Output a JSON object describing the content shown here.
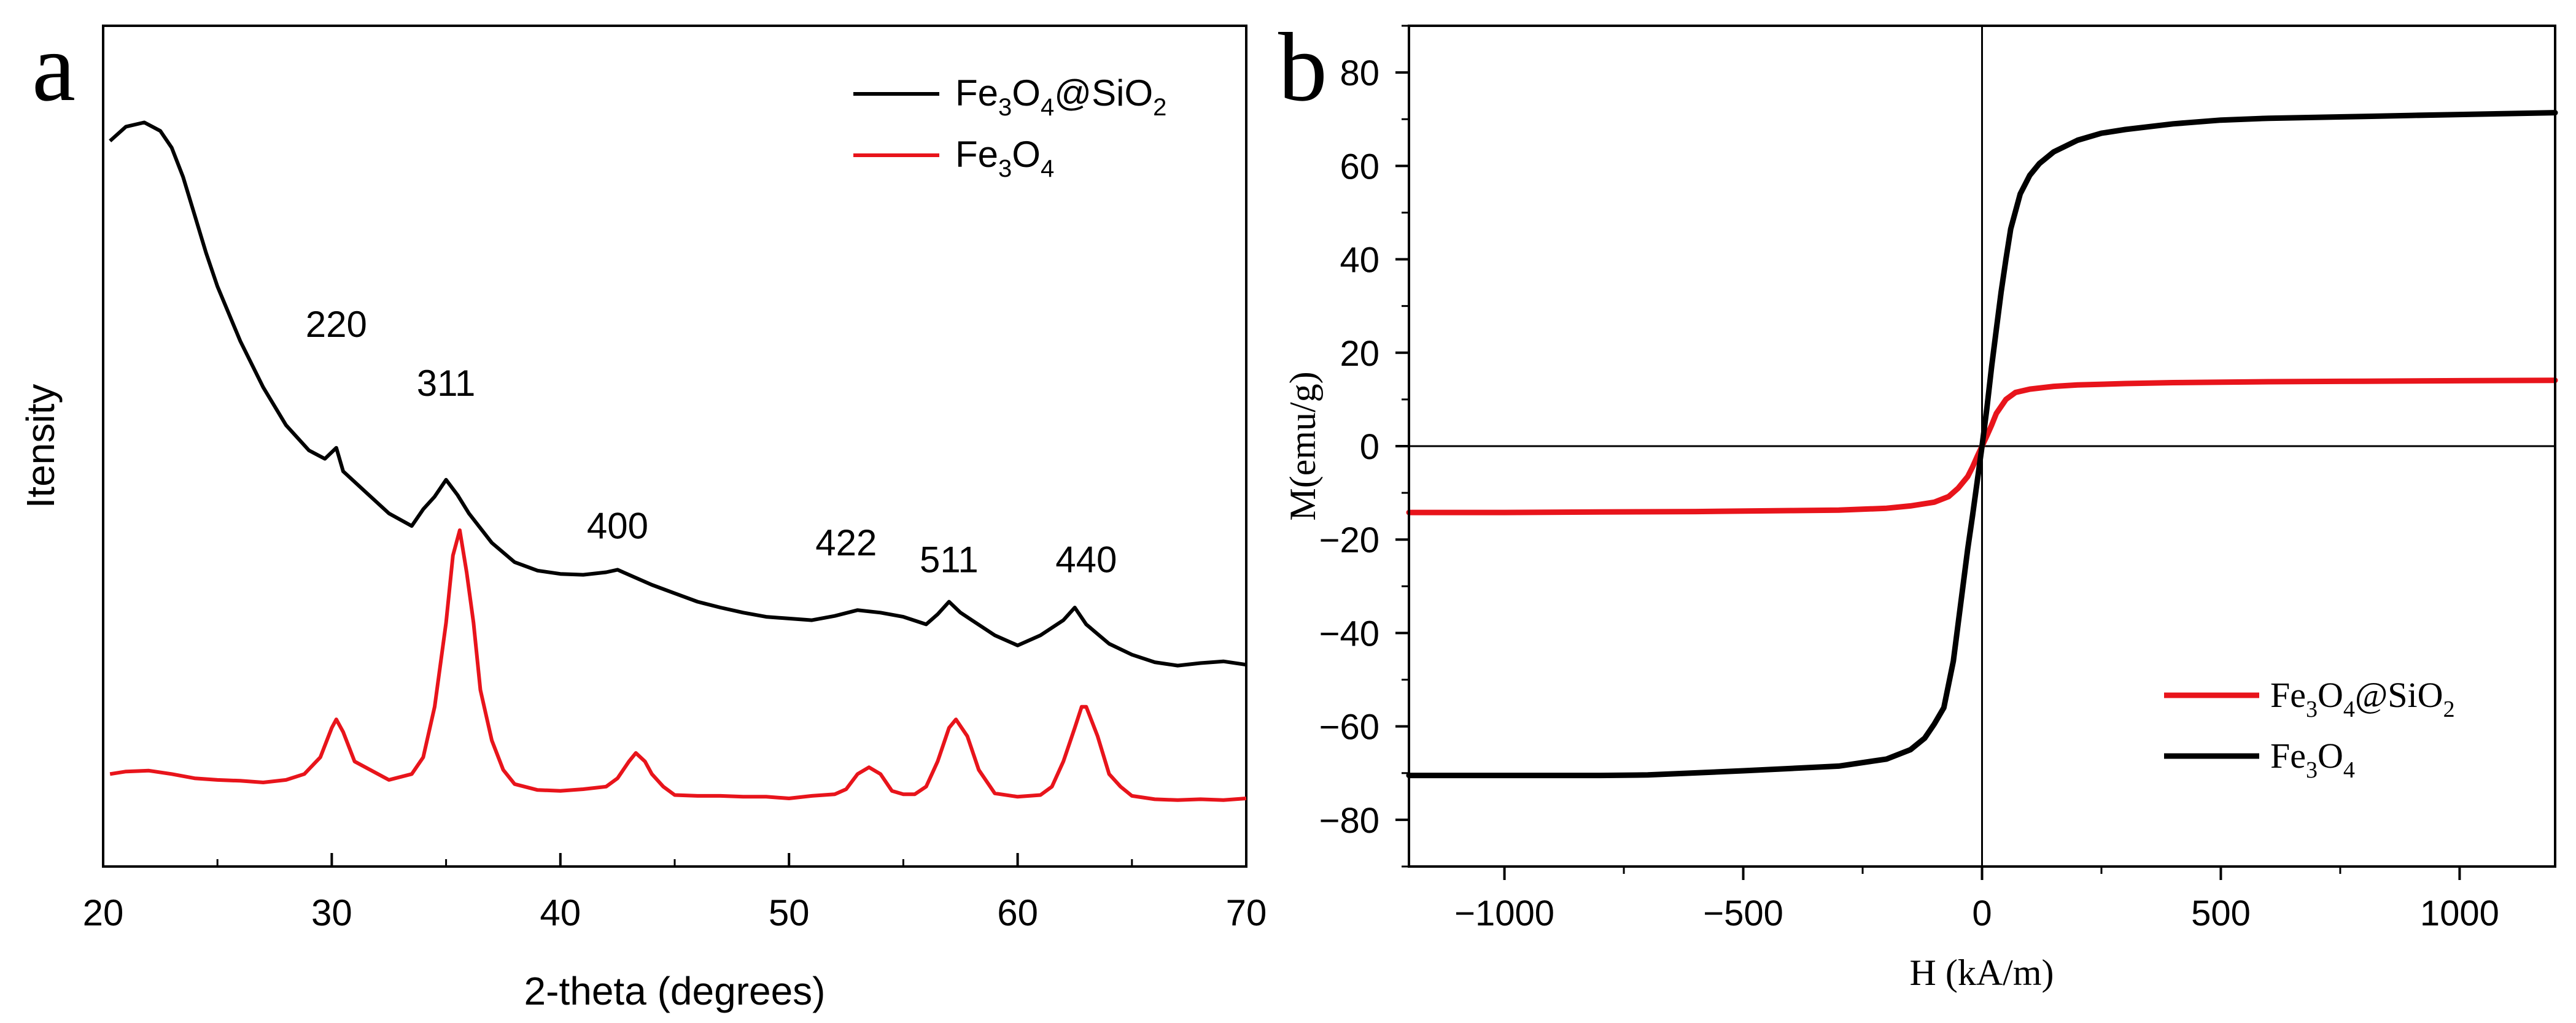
{
  "chart_data": [
    {
      "panel_label": "a",
      "type": "line",
      "title": "",
      "xlabel": "2-theta (degrees)",
      "ylabel": "Itensity",
      "xlim": [
        20,
        70
      ],
      "ylim": [
        0,
        100
      ],
      "xticks": [
        20,
        30,
        40,
        50,
        60,
        70
      ],
      "xtick_labels": [
        "20",
        "30",
        "40",
        "50",
        "60",
        "70"
      ],
      "yticks_shown": false,
      "grid": false,
      "legend_position": "top-right",
      "legend": [
        {
          "label": "Fe3O4@SiO2",
          "sub_label": {
            "pre1": "Fe",
            "sub1": "3",
            "mid": "O",
            "sub2": "4",
            "post": "@SiO",
            "sub3": "2"
          },
          "color": "#000000"
        },
        {
          "label": "Fe3O4",
          "sub_label": {
            "pre1": "Fe",
            "sub1": "3",
            "mid": "O",
            "sub2": "4",
            "post": "",
            "sub3": ""
          },
          "color": "#e8141b"
        }
      ],
      "annotations": [
        {
          "text": "220",
          "x": 30.2,
          "y": 63
        },
        {
          "text": "311",
          "x": 35.0,
          "y": 56
        },
        {
          "text": "400",
          "x": 42.5,
          "y": 39
        },
        {
          "text": "422",
          "x": 52.5,
          "y": 37
        },
        {
          "text": "511",
          "x": 57.0,
          "y": 35
        },
        {
          "text": "440",
          "x": 63.0,
          "y": 35
        }
      ],
      "series": [
        {
          "name": "Fe3O4@SiO2",
          "color": "#000000",
          "x": [
            20.3,
            21.0,
            21.8,
            22.5,
            23.0,
            23.5,
            24.0,
            24.5,
            25.0,
            26.0,
            27.0,
            28.0,
            29.0,
            29.7,
            30.2,
            30.5,
            31.5,
            32.5,
            33.5,
            34.0,
            34.5,
            35.0,
            35.5,
            36.0,
            37.0,
            38.0,
            39.0,
            40.0,
            41.0,
            42.0,
            42.5,
            43.0,
            44.0,
            45.0,
            46.0,
            47.0,
            48.0,
            49.0,
            50.0,
            51.0,
            52.0,
            53.0,
            54.0,
            55.0,
            56.0,
            56.5,
            57.0,
            57.5,
            58.0,
            59.0,
            60.0,
            61.0,
            62.0,
            62.5,
            63.0,
            64.0,
            65.0,
            66.0,
            67.0,
            68.0,
            69.0,
            70.0
          ],
          "y": [
            86.3,
            88.0,
            88.5,
            87.5,
            85.5,
            82.0,
            77.5,
            73.0,
            69.0,
            62.5,
            57.0,
            52.5,
            49.5,
            48.5,
            49.8,
            47.0,
            44.5,
            42.0,
            40.5,
            42.5,
            44.0,
            46.0,
            44.2,
            42.0,
            38.5,
            36.2,
            35.2,
            34.8,
            34.7,
            35.0,
            35.3,
            34.7,
            33.5,
            32.5,
            31.5,
            30.8,
            30.2,
            29.7,
            29.5,
            29.3,
            29.8,
            30.5,
            30.2,
            29.7,
            28.8,
            30.0,
            31.5,
            30.2,
            29.3,
            27.5,
            26.3,
            27.5,
            29.3,
            30.8,
            28.8,
            26.5,
            25.2,
            24.3,
            23.9,
            24.2,
            24.4,
            24.0
          ]
        },
        {
          "name": "Fe3O4",
          "color": "#e8141b",
          "x": [
            20.3,
            21.0,
            22.0,
            23.0,
            24.0,
            25.0,
            26.0,
            27.0,
            28.0,
            28.8,
            29.5,
            30.0,
            30.2,
            30.5,
            31.0,
            32.5,
            33.5,
            34.0,
            34.5,
            35.0,
            35.3,
            35.6,
            35.9,
            36.2,
            36.5,
            37.0,
            37.5,
            38.0,
            39.0,
            40.0,
            41.0,
            42.0,
            42.5,
            43.0,
            43.3,
            43.7,
            44.0,
            44.5,
            45.0,
            46.0,
            47.0,
            48.0,
            49.0,
            50.0,
            51.0,
            52.0,
            52.5,
            53.0,
            53.5,
            54.0,
            54.5,
            55.0,
            55.5,
            56.0,
            56.5,
            57.0,
            57.3,
            57.8,
            58.3,
            59.0,
            60.0,
            61.0,
            61.5,
            62.0,
            62.5,
            62.8,
            63.0,
            63.5,
            64.0,
            64.5,
            65.0,
            66.0,
            67.0,
            68.0,
            69.0,
            70.0
          ],
          "y": [
            11.0,
            11.3,
            11.4,
            11.0,
            10.5,
            10.3,
            10.2,
            10.0,
            10.3,
            11.0,
            13.0,
            16.5,
            17.5,
            16.0,
            12.5,
            10.3,
            11.0,
            13.0,
            19.0,
            29.0,
            37.0,
            40.0,
            35.0,
            29.0,
            21.0,
            15.0,
            11.5,
            9.8,
            9.1,
            9.0,
            9.2,
            9.5,
            10.5,
            12.5,
            13.5,
            12.5,
            11.0,
            9.5,
            8.5,
            8.4,
            8.4,
            8.3,
            8.3,
            8.1,
            8.4,
            8.6,
            9.2,
            11.0,
            11.8,
            11.0,
            9.0,
            8.6,
            8.6,
            9.5,
            12.5,
            16.5,
            17.5,
            15.5,
            11.5,
            8.7,
            8.3,
            8.5,
            9.5,
            12.5,
            16.5,
            19.0,
            19.0,
            15.5,
            11.0,
            9.5,
            8.4,
            8.0,
            7.9,
            8.0,
            7.9,
            8.1
          ]
        }
      ]
    },
    {
      "panel_label": "b",
      "type": "line",
      "title": "",
      "xlabel": "H (kA/m)",
      "ylabel": "M(emu/g)",
      "xlim": [
        -1200,
        1200
      ],
      "ylim": [
        -90,
        90
      ],
      "xticks": [
        -1000,
        -500,
        0,
        500,
        1000
      ],
      "xtick_labels": [
        "−1000",
        "−500",
        "0",
        "500",
        "1000"
      ],
      "yticks": [
        -80,
        -60,
        -40,
        -20,
        0,
        20,
        40,
        60,
        80
      ],
      "ytick_labels": [
        "−80",
        "−60",
        "−40",
        "−20",
        "0",
        "20",
        "40",
        "60",
        "80"
      ],
      "zero_lines": true,
      "grid": false,
      "legend_position": "bottom-right",
      "legend": [
        {
          "label": "Fe3O4@SiO2",
          "sub_label": {
            "pre1": "Fe",
            "sub1": "3",
            "mid": "O",
            "sub2": "4",
            "post": "@SiO",
            "sub3": "2"
          },
          "color": "#e8141b"
        },
        {
          "label": "Fe3O4",
          "sub_label": {
            "pre1": "Fe",
            "sub1": "3",
            "mid": "O",
            "sub2": "4",
            "post": "",
            "sub3": ""
          },
          "color": "#000000"
        }
      ],
      "series": [
        {
          "name": "Fe3O4@SiO2",
          "color": "#e8141b",
          "x": [
            -1200,
            -1000,
            -800,
            -600,
            -400,
            -300,
            -200,
            -150,
            -100,
            -70,
            -50,
            -30,
            -20,
            -10,
            0,
            10,
            20,
            30,
            50,
            70,
            100,
            150,
            200,
            300,
            400,
            600,
            800,
            1000,
            1200
          ],
          "y": [
            -14.2,
            -14.2,
            -14.1,
            -14.0,
            -13.8,
            -13.7,
            -13.3,
            -12.8,
            -12.0,
            -10.8,
            -9.0,
            -6.5,
            -4.5,
            -2.2,
            0,
            2.2,
            4.5,
            7.0,
            10.0,
            11.5,
            12.2,
            12.8,
            13.1,
            13.4,
            13.6,
            13.8,
            13.9,
            14.0,
            14.1
          ]
        },
        {
          "name": "Fe3O4",
          "color": "#000000",
          "x": [
            -1200,
            -1000,
            -800,
            -700,
            -500,
            -400,
            -300,
            -200,
            -150,
            -120,
            -100,
            -80,
            -60,
            -50,
            -40,
            -30,
            -20,
            -10,
            0,
            10,
            20,
            30,
            40,
            50,
            60,
            80,
            100,
            120,
            150,
            200,
            250,
            300,
            400,
            500,
            600,
            700,
            800,
            900,
            1000,
            1100,
            1200
          ],
          "y": [
            -70.5,
            -70.5,
            -70.5,
            -70.4,
            -69.5,
            -69.0,
            -68.5,
            -67.0,
            -65.0,
            -62.5,
            -59.5,
            -56.0,
            -46.0,
            -38.0,
            -30.0,
            -22.0,
            -15.0,
            -7.5,
            0,
            8.0,
            17.0,
            25.0,
            33.0,
            40.0,
            46.5,
            54.0,
            58.0,
            60.5,
            63.0,
            65.5,
            67.0,
            67.8,
            69.0,
            69.8,
            70.2,
            70.4,
            70.6,
            70.8,
            71.0,
            71.2,
            71.4
          ]
        }
      ]
    }
  ]
}
